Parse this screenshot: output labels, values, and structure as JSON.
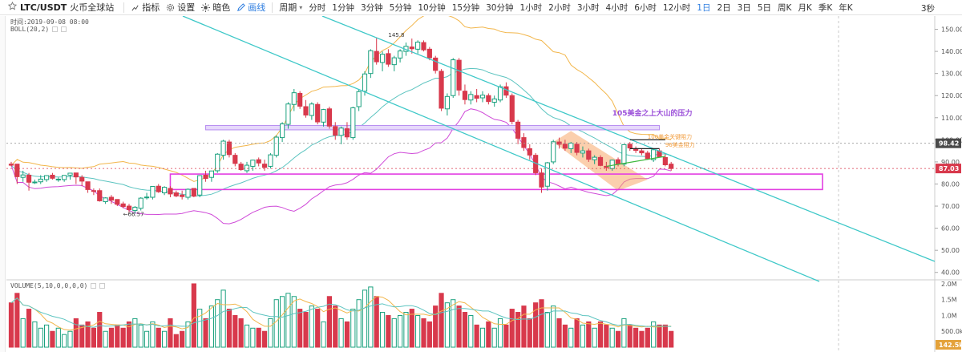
{
  "toolbar": {
    "symbol": "LTC/USDT",
    "exchange": "火币全球站",
    "indicators_label": "指标",
    "settings_label": "设置",
    "theme_label": "暗色",
    "draw_label": "画线",
    "period_label": "周期",
    "intervals": [
      "分时",
      "1分钟",
      "3分钟",
      "5分钟",
      "10分钟",
      "15分钟",
      "30分钟",
      "1小时",
      "2小时",
      "3小时",
      "4小时",
      "6小时",
      "12小时",
      "1日",
      "2日",
      "3日",
      "5日",
      "周K",
      "月K",
      "季K",
      "年K"
    ],
    "active_interval": "1日",
    "right_label": "3秒"
  },
  "legend": {
    "time_text": "时间:2019-09-08 08:00",
    "boll_text": "BOLL(20,2)",
    "volume_text": "VOLUME(5,10,0,0,0,0)"
  },
  "chart_data": {
    "type": "candlestick",
    "price_axis": {
      "ticks": [
        40,
        50,
        60,
        70,
        80,
        90,
        100,
        110,
        120,
        130,
        140,
        150
      ],
      "range": [
        37,
        156
      ]
    },
    "volume_axis": {
      "ticks": [
        "500.0k",
        "1.0M",
        "1.5M",
        "2.0M"
      ],
      "range": [
        0,
        2100000
      ]
    },
    "current_price_label": "98.42",
    "reference_price_label": "87.03",
    "bottom_volume_label": "142.5k",
    "high_marker": "145.8",
    "low_marker": "66.57",
    "annotations": [
      "105美金之上大山的压力",
      "100美金关键阻力",
      "96美金阻力"
    ],
    "colors": {
      "up": "#1aa17e",
      "down": "#d8394c",
      "boll_upper": "#f2b64b",
      "boll_mid": "#5cc4c0",
      "boll_lower": "#cf4ad8",
      "channel": "#3ec8c8",
      "support_box": "#e33fe2",
      "resistance_band": "#b68cf0",
      "flag": "#f7a76a"
    },
    "candles": [
      [
        89,
        90,
        88,
        88.5,
        1400000
      ],
      [
        89,
        89,
        80,
        83.3,
        1700000
      ],
      [
        83,
        86,
        81,
        84.1,
        900000
      ],
      [
        84,
        85,
        77,
        80.8,
        1200000
      ],
      [
        80.8,
        82,
        80,
        80.9,
        800000
      ],
      [
        81,
        84,
        80,
        82.2,
        600000
      ],
      [
        82,
        84,
        81,
        83.8,
        700000
      ],
      [
        84,
        85,
        82,
        82.6,
        500000
      ],
      [
        82,
        83,
        81,
        82.2,
        600000
      ],
      [
        82,
        84,
        81,
        83.9,
        400000
      ],
      [
        84,
        85,
        82,
        84.9,
        500000
      ],
      [
        85,
        85,
        80,
        83.2,
        900000
      ],
      [
        83,
        84,
        79,
        81.3,
        700000
      ],
      [
        81,
        81,
        76,
        77.5,
        800000
      ],
      [
        77,
        78,
        75,
        76.9,
        600000
      ],
      [
        77,
        78,
        72,
        72.4,
        1100000
      ],
      [
        72,
        74,
        71,
        73.7,
        500000
      ],
      [
        74,
        75,
        71,
        72.7,
        600000
      ],
      [
        73,
        73,
        70,
        70.8,
        700000
      ],
      [
        71,
        72,
        69,
        69.8,
        600000
      ],
      [
        70,
        71,
        67,
        68.4,
        800000
      ],
      [
        68,
        70,
        66.6,
        69.5,
        900000
      ],
      [
        69,
        74,
        68,
        73.6,
        700000
      ],
      [
        74,
        76,
        73,
        74.1,
        500000
      ],
      [
        74,
        79,
        73,
        78.9,
        800000
      ],
      [
        79,
        80,
        76,
        76.5,
        600000
      ],
      [
        76,
        79,
        75,
        78.5,
        500000
      ],
      [
        78,
        79,
        74,
        75.5,
        900000
      ],
      [
        76,
        77,
        74,
        74.6,
        400000
      ],
      [
        75,
        77,
        73,
        74.3,
        500000
      ],
      [
        74,
        78,
        73,
        77.6,
        800000
      ],
      [
        78,
        78,
        74,
        74.5,
        2000000
      ],
      [
        75,
        84,
        74,
        83.8,
        1200000
      ],
      [
        84,
        86,
        81,
        82.5,
        900000
      ],
      [
        83,
        86,
        81,
        85.9,
        1300000
      ],
      [
        86,
        94,
        85,
        93.5,
        1500000
      ],
      [
        93,
        100,
        91,
        99.4,
        1800000
      ],
      [
        99,
        100,
        92,
        93.3,
        1200000
      ],
      [
        93,
        94,
        88,
        89.3,
        1000000
      ],
      [
        89,
        90,
        86,
        86.5,
        900000
      ],
      [
        86,
        90,
        85,
        88.5,
        700000
      ],
      [
        88,
        91,
        86,
        90.8,
        600000
      ],
      [
        91,
        92,
        88,
        89.5,
        600000
      ],
      [
        89,
        91,
        86,
        87.5,
        500000
      ],
      [
        88,
        94,
        87,
        93.2,
        900000
      ],
      [
        93,
        102,
        92,
        101.2,
        1500000
      ],
      [
        101,
        108,
        99,
        107.2,
        1600000
      ],
      [
        107,
        117,
        105,
        116.2,
        1700000
      ],
      [
        116,
        123,
        113,
        121.3,
        1600000
      ],
      [
        121,
        122,
        114,
        115.2,
        1200000
      ],
      [
        115,
        118,
        110,
        111.2,
        1100000
      ],
      [
        111,
        117,
        109,
        116.2,
        1300000
      ],
      [
        116,
        117,
        107,
        108.1,
        1200000
      ],
      [
        108,
        114,
        106,
        113.7,
        800000
      ],
      [
        114,
        115,
        105,
        106.2,
        1600000
      ],
      [
        106,
        108,
        100,
        102.1,
        1300000
      ],
      [
        102,
        106,
        98,
        105.3,
        900000
      ],
      [
        105,
        108,
        100,
        101.3,
        800000
      ],
      [
        101,
        115,
        100,
        114.5,
        1200000
      ],
      [
        115,
        123,
        113,
        121.8,
        1500000
      ],
      [
        122,
        131,
        120,
        129.8,
        1800000
      ],
      [
        130,
        141,
        128,
        140.3,
        1900000
      ],
      [
        140,
        146,
        134,
        135.3,
        1600000
      ],
      [
        135,
        140,
        131,
        138.7,
        1100000
      ],
      [
        139,
        141,
        133,
        134.2,
        1000000
      ],
      [
        134,
        138,
        131,
        137.1,
        900000
      ],
      [
        137,
        141,
        135,
        140.2,
        1000000
      ],
      [
        140,
        144,
        138,
        142.3,
        1100000
      ],
      [
        142,
        145.8,
        139,
        141.2,
        1200000
      ],
      [
        141,
        145,
        139,
        144.2,
        1000000
      ],
      [
        144,
        145,
        140,
        140.7,
        900000
      ],
      [
        141,
        142,
        136,
        137.1,
        800000
      ],
      [
        137,
        138,
        130,
        131.4,
        1300000
      ],
      [
        131,
        132,
        113,
        114.3,
        1700000
      ],
      [
        114,
        121,
        111,
        119.6,
        1400000
      ],
      [
        120,
        137,
        119,
        136.2,
        1500000
      ],
      [
        136,
        137,
        120,
        122.5,
        1300000
      ],
      [
        122,
        125,
        116,
        118.2,
        1100000
      ],
      [
        118,
        122,
        116,
        120.5,
        1000000
      ],
      [
        120,
        123,
        117,
        118.8,
        700000
      ],
      [
        119,
        122,
        117,
        120.2,
        600000
      ],
      [
        120,
        121,
        116,
        117.3,
        800000
      ],
      [
        117,
        120,
        115,
        118.5,
        600000
      ],
      [
        118,
        125,
        117,
        124.0,
        900000
      ],
      [
        124,
        126,
        119,
        120.2,
        700000
      ],
      [
        120,
        121,
        107,
        108.3,
        1200000
      ],
      [
        108,
        109,
        98,
        100.7,
        1100000
      ],
      [
        101,
        103,
        95,
        96.5,
        1300000
      ],
      [
        96,
        98,
        91,
        93.1,
        900000
      ],
      [
        93,
        94,
        84,
        85.1,
        1400000
      ],
      [
        85,
        87,
        76,
        78.6,
        1500000
      ],
      [
        79,
        90,
        77,
        89.6,
        1100000
      ],
      [
        90,
        100,
        89,
        99.1,
        1300000
      ],
      [
        99,
        101,
        96,
        98.0,
        900000
      ],
      [
        98,
        100,
        95,
        96.2,
        700000
      ],
      [
        96,
        99,
        94,
        98.5,
        600000
      ],
      [
        98,
        99,
        93,
        94.3,
        900000
      ],
      [
        94,
        97,
        92,
        95.0,
        700000
      ],
      [
        95,
        96,
        90,
        91.2,
        800000
      ],
      [
        91,
        93,
        89,
        92.1,
        600000
      ],
      [
        92,
        93,
        88,
        88.4,
        800000
      ],
      [
        88,
        90,
        86,
        87.5,
        700000
      ],
      [
        87,
        91,
        86,
        90.8,
        600000
      ],
      [
        91,
        92,
        88,
        89.1,
        500000
      ],
      [
        89,
        98,
        88,
        97.8,
        900000
      ],
      [
        98,
        99,
        95,
        96.3,
        700000
      ],
      [
        96,
        97,
        94,
        95.2,
        600000
      ],
      [
        95,
        96,
        93,
        94.1,
        500000
      ],
      [
        94,
        95,
        91,
        91.5,
        600000
      ],
      [
        91,
        96,
        90,
        95.5,
        800000
      ],
      [
        95,
        96,
        92,
        92.3,
        700000
      ],
      [
        92,
        94,
        88,
        88.7,
        700000
      ],
      [
        89,
        90,
        86,
        87.0,
        500000
      ]
    ]
  }
}
